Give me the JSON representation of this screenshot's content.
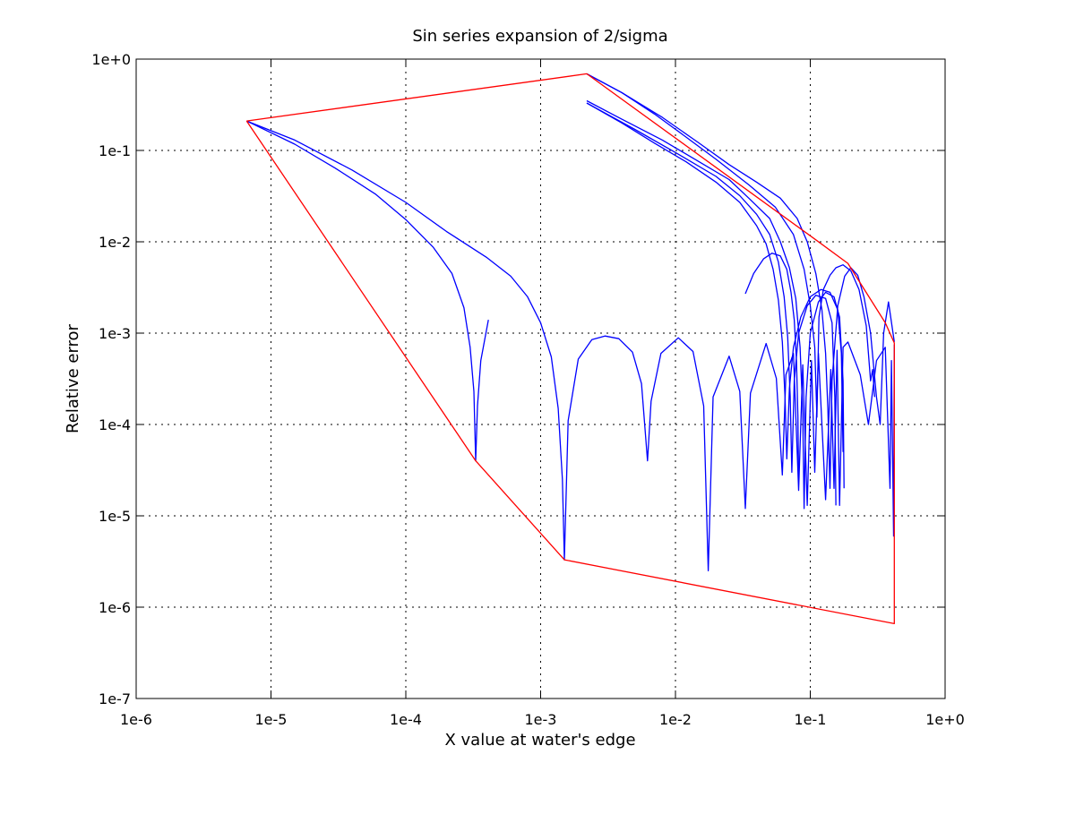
{
  "chart_data": {
    "type": "line",
    "title": "Sin series expansion of 2/sigma",
    "xlabel": "X value at water's edge",
    "ylabel": "Relative error",
    "x_scale": "log",
    "y_scale": "log",
    "xlim": [
      1e-06,
      1
    ],
    "ylim": [
      1e-07,
      1
    ],
    "grid": true,
    "x_ticks": [
      "1e-6",
      "1e-5",
      "1e-4",
      "1e-3",
      "1e-2",
      "1e-1",
      "1e+0"
    ],
    "y_ticks": [
      "1e+0",
      "1e-1",
      "1e-2",
      "1e-3",
      "1e-4",
      "1e-5",
      "1e-6",
      "1e-7"
    ],
    "colors": {
      "envelope": "#ff0000",
      "curves": "#0000ff"
    },
    "envelope": {
      "points": [
        [
          6.6e-06,
          0.21
        ],
        [
          0.0022,
          0.69
        ],
        [
          0.11,
          0.0105
        ],
        [
          0.19,
          0.0058
        ],
        [
          0.36,
          0.0013
        ],
        [
          0.42,
          0.00078
        ],
        [
          0.42,
          6.6e-07
        ],
        [
          0.0015,
          3.3e-06
        ],
        [
          0.00033,
          4e-05
        ],
        [
          6.6e-06,
          0.21
        ]
      ]
    },
    "series": [
      {
        "points": [
          [
            6.6e-06,
            0.21
          ],
          [
            1.5e-05,
            0.117
          ],
          [
            3e-05,
            0.064
          ],
          [
            6e-05,
            0.033
          ],
          [
            0.0001,
            0.0175
          ],
          [
            0.00016,
            0.0087
          ],
          [
            0.00022,
            0.0045
          ],
          [
            0.00027,
            0.0019
          ],
          [
            0.0003,
            0.0007
          ],
          [
            0.00032,
            0.00023
          ],
          [
            0.00033,
            4e-05
          ],
          [
            0.00034,
            0.00016
          ],
          [
            0.00036,
            0.0005
          ],
          [
            0.00041,
            0.0014
          ]
        ]
      },
      {
        "points": [
          [
            6.6e-06,
            0.21
          ],
          [
            1.5e-05,
            0.13
          ],
          [
            4e-05,
            0.061
          ],
          [
            0.0001,
            0.027
          ],
          [
            0.0002,
            0.013
          ],
          [
            0.0004,
            0.0067
          ],
          [
            0.0006,
            0.0042
          ],
          [
            0.0008,
            0.0025
          ],
          [
            0.001,
            0.0013
          ],
          [
            0.0012,
            0.00055
          ],
          [
            0.00135,
            0.00015
          ],
          [
            0.00145,
            2.5e-05
          ],
          [
            0.0015,
            3.3e-06
          ],
          [
            0.0016,
            0.00011
          ],
          [
            0.0019,
            0.00052
          ],
          [
            0.0024,
            0.00085
          ],
          [
            0.003,
            0.00093
          ],
          [
            0.0038,
            0.00087
          ],
          [
            0.0048,
            0.00062
          ],
          [
            0.0056,
            0.00028
          ],
          [
            0.0062,
            4e-05
          ],
          [
            0.0066,
            0.00018
          ],
          [
            0.0078,
            0.0006
          ],
          [
            0.0105,
            0.00089
          ],
          [
            0.0135,
            0.00063
          ],
          [
            0.0162,
            0.00016
          ],
          [
            0.0175,
            2.5e-06
          ],
          [
            0.019,
            0.0002
          ],
          [
            0.025,
            0.00056
          ],
          [
            0.03,
            0.00023
          ],
          [
            0.033,
            1.2e-05
          ],
          [
            0.036,
            0.00022
          ],
          [
            0.047,
            0.00077
          ],
          [
            0.056,
            0.00032
          ],
          [
            0.062,
            2.8e-05
          ],
          [
            0.066,
            0.00035
          ],
          [
            0.075,
            0.0006
          ],
          [
            0.082,
            1.9e-05
          ],
          [
            0.088,
            0.00045
          ],
          [
            0.095,
            1.3e-05
          ],
          [
            0.102,
            0.0005
          ],
          [
            0.108,
            3e-05
          ],
          [
            0.115,
            0.0006
          ],
          [
            0.13,
            1.5e-05
          ],
          [
            0.142,
            0.0004
          ],
          [
            0.15,
            2e-05
          ],
          [
            0.158,
            0.00065
          ],
          [
            0.165,
            1.3e-05
          ],
          [
            0.175,
            0.0007
          ],
          [
            0.19,
            0.0008
          ],
          [
            0.235,
            0.00035
          ],
          [
            0.27,
            0.0001
          ],
          [
            0.31,
            0.0005
          ],
          [
            0.36,
            0.0007
          ],
          [
            0.39,
            2e-05
          ],
          [
            0.4,
            0.0005
          ],
          [
            0.415,
            6e-06
          ],
          [
            0.42,
            0.00075
          ]
        ]
      },
      {
        "points": [
          [
            0.0022,
            0.69
          ],
          [
            0.004,
            0.43
          ],
          [
            0.007,
            0.25
          ],
          [
            0.012,
            0.14
          ],
          [
            0.02,
            0.08
          ],
          [
            0.035,
            0.042
          ],
          [
            0.055,
            0.024
          ],
          [
            0.075,
            0.012
          ],
          [
            0.09,
            0.005
          ],
          [
            0.1,
            0.002
          ],
          [
            0.108,
            0.0007
          ],
          [
            0.112,
            0.00012
          ],
          [
            0.116,
            0.0015
          ],
          [
            0.125,
            0.003
          ],
          [
            0.14,
            0.0043
          ],
          [
            0.155,
            0.0052
          ],
          [
            0.175,
            0.0056
          ],
          [
            0.2,
            0.0048
          ],
          [
            0.23,
            0.003
          ],
          [
            0.26,
            0.0012
          ],
          [
            0.28,
            0.0003
          ],
          [
            0.29,
            0.0004
          ],
          [
            0.3,
            0.0002
          ]
        ]
      },
      {
        "points": [
          [
            0.0022,
            0.69
          ],
          [
            0.004,
            0.43
          ],
          [
            0.008,
            0.23
          ],
          [
            0.015,
            0.12
          ],
          [
            0.025,
            0.07
          ],
          [
            0.04,
            0.045
          ],
          [
            0.06,
            0.03
          ],
          [
            0.08,
            0.018
          ],
          [
            0.095,
            0.01
          ],
          [
            0.11,
            0.0045
          ],
          [
            0.122,
            0.0018
          ],
          [
            0.13,
            0.0006
          ],
          [
            0.135,
            0.00015
          ],
          [
            0.14,
            2e-05
          ],
          [
            0.145,
            0.0003
          ],
          [
            0.16,
            0.002
          ],
          [
            0.18,
            0.0042
          ],
          [
            0.2,
            0.0052
          ],
          [
            0.225,
            0.0043
          ],
          [
            0.25,
            0.0025
          ],
          [
            0.28,
            0.001
          ],
          [
            0.31,
            0.0002
          ],
          [
            0.33,
            0.0001
          ],
          [
            0.35,
            0.001
          ],
          [
            0.38,
            0.0022
          ],
          [
            0.42,
            0.0008
          ]
        ]
      },
      {
        "points": [
          [
            0.0022,
            0.33
          ],
          [
            0.004,
            0.2
          ],
          [
            0.007,
            0.12
          ],
          [
            0.012,
            0.075
          ],
          [
            0.02,
            0.045
          ],
          [
            0.03,
            0.027
          ],
          [
            0.04,
            0.015
          ],
          [
            0.047,
            0.0095
          ],
          [
            0.053,
            0.005
          ],
          [
            0.058,
            0.0023
          ],
          [
            0.062,
            0.0008
          ],
          [
            0.065,
            0.0002
          ],
          [
            0.067,
            4.2e-05
          ],
          [
            0.07,
            0.00025
          ],
          [
            0.075,
            0.0007
          ],
          [
            0.085,
            0.0015
          ],
          [
            0.1,
            0.0025
          ],
          [
            0.12,
            0.003
          ],
          [
            0.14,
            0.0028
          ],
          [
            0.16,
            0.0018
          ],
          [
            0.17,
            0.0006
          ],
          [
            0.175,
            5e-05
          ]
        ]
      },
      {
        "points": [
          [
            0.0022,
            0.35
          ],
          [
            0.004,
            0.22
          ],
          [
            0.008,
            0.13
          ],
          [
            0.015,
            0.075
          ],
          [
            0.025,
            0.048
          ],
          [
            0.035,
            0.03
          ],
          [
            0.05,
            0.018
          ],
          [
            0.06,
            0.01
          ],
          [
            0.07,
            0.0052
          ],
          [
            0.078,
            0.0024
          ],
          [
            0.084,
            0.0007
          ],
          [
            0.088,
            0.00013
          ],
          [
            0.09,
            1.2e-05
          ],
          [
            0.093,
            0.0002
          ],
          [
            0.1,
            0.001
          ],
          [
            0.115,
            0.0022
          ],
          [
            0.13,
            0.0028
          ],
          [
            0.15,
            0.0025
          ],
          [
            0.165,
            0.0015
          ],
          [
            0.175,
            0.0003
          ],
          [
            0.178,
            2e-05
          ]
        ]
      },
      {
        "points": [
          [
            0.033,
            0.0027
          ],
          [
            0.038,
            0.0045
          ],
          [
            0.045,
            0.0065
          ],
          [
            0.052,
            0.0075
          ],
          [
            0.06,
            0.007
          ],
          [
            0.067,
            0.005
          ],
          [
            0.072,
            0.0028
          ],
          [
            0.076,
            0.0014
          ],
          [
            0.079,
            0.0005
          ],
          [
            0.081,
            0.00012
          ],
          [
            0.082,
            2.5e-05
          ]
        ]
      },
      {
        "points": [
          [
            0.0022,
            0.33
          ],
          [
            0.005,
            0.17
          ],
          [
            0.01,
            0.095
          ],
          [
            0.02,
            0.052
          ],
          [
            0.03,
            0.032
          ],
          [
            0.04,
            0.02
          ],
          [
            0.05,
            0.012
          ],
          [
            0.058,
            0.006
          ],
          [
            0.064,
            0.0025
          ],
          [
            0.068,
            0.0009
          ],
          [
            0.071,
            0.0002
          ],
          [
            0.073,
            3e-05
          ],
          [
            0.076,
            0.0003
          ],
          [
            0.082,
            0.001
          ],
          [
            0.095,
            0.002
          ],
          [
            0.11,
            0.0026
          ],
          [
            0.13,
            0.0024
          ],
          [
            0.145,
            0.0013
          ],
          [
            0.152,
            0.0002
          ],
          [
            0.155,
            1.3e-05
          ]
        ]
      }
    ]
  }
}
